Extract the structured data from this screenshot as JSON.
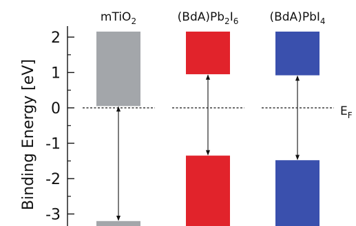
{
  "chart_data": {
    "type": "bar",
    "ylabel": "Binding Energy [eV]",
    "ylim": [
      -3.3,
      2.3
    ],
    "yticks": [
      2,
      1,
      0,
      -1,
      -2,
      -3
    ],
    "ytick_labels": [
      "2",
      "1",
      "0",
      "-1",
      "-2",
      "-3"
    ],
    "fermi_level": {
      "value": 0,
      "label_main": "E",
      "label_sub": "F"
    },
    "materials": [
      {
        "label_main": "mTiO",
        "label_sub": "2",
        "label_tail": "",
        "color": "#a3a6aa",
        "conduction_band": {
          "from": 0.05,
          "to": 2.2
        },
        "valence_band": {
          "from": -3.3,
          "to": -3.2
        },
        "gap_arrow": {
          "from": -3.2,
          "to": 0.05
        }
      },
      {
        "label_main": "(BdA)Pb",
        "label_sub": "2",
        "label_tail": "I",
        "label_sub2": "6",
        "color": "#e1232b",
        "conduction_band": {
          "from": 0.95,
          "to": 2.2
        },
        "valence_band": {
          "from": -3.3,
          "to": -1.35
        },
        "gap_arrow": {
          "from": -1.35,
          "to": 0.95
        }
      },
      {
        "label_main": "(BdA)PbI",
        "label_sub": "4",
        "label_tail": "",
        "color": "#3a50ad",
        "conduction_band": {
          "from": 0.92,
          "to": 2.2
        },
        "valence_band": {
          "from": -3.3,
          "to": -1.48
        },
        "gap_arrow": {
          "from": -1.48,
          "to": 0.92
        }
      }
    ]
  }
}
